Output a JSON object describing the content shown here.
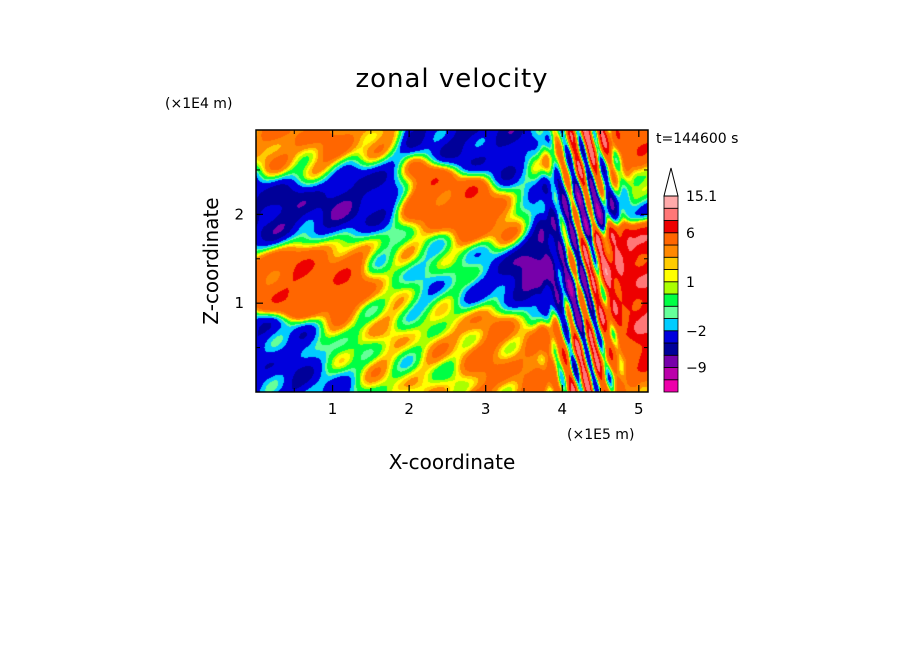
{
  "chart_data": {
    "type": "heatmap",
    "title": "zonal velocity",
    "xlabel": "X-coordinate",
    "ylabel": "Z-coordinate",
    "x_scale_label": "(×1E5 m)",
    "y_scale_label": "(×1E4 m)",
    "time_label": "t=144600 s",
    "xlim": [
      0,
      5.12
    ],
    "ylim": [
      0,
      2.95
    ],
    "x_ticks": [
      1,
      2,
      3,
      4,
      5
    ],
    "y_ticks": [
      1,
      2
    ],
    "grid": false,
    "colorbar": {
      "placement": "right",
      "levels": [
        -15,
        -12,
        -9,
        -6,
        -4,
        -2,
        -1,
        -0.5,
        0.5,
        1,
        1.5,
        2,
        3,
        6,
        8.5,
        12,
        15.1
      ],
      "colors": [
        "#ee00aa",
        "#bb00aa",
        "#7700aa",
        "#000099",
        "#0000dd",
        "#00ccff",
        "#66ff99",
        "#00ff44",
        "#aaff00",
        "#ffff00",
        "#ffcc00",
        "#ff8800",
        "#ff6600",
        "#ee0000",
        "#ff7777",
        "#ffaaaa",
        "#ffffff"
      ],
      "labeled_levels": [
        15.1,
        6,
        1,
        -2,
        -9
      ],
      "labels": [
        "15.1",
        "6",
        "1",
        "−2",
        "−9"
      ],
      "extend": "max"
    },
    "features": [
      {
        "x": 0.2,
        "z": 2.1,
        "value": -5
      },
      {
        "x": 1.1,
        "z": 2.05,
        "value": -5
      },
      {
        "x": 0.9,
        "z": 1.4,
        "value": 5
      },
      {
        "x": 2.6,
        "z": 2.0,
        "value": 5
      },
      {
        "x": 2.5,
        "z": 1.4,
        "value": -1
      },
      {
        "x": 2.0,
        "z": 1.55,
        "value": 0
      },
      {
        "x": 3.8,
        "z": 1.2,
        "value": -7
      },
      {
        "x": 4.8,
        "z": 1.3,
        "value": 8
      },
      {
        "x": 3.5,
        "z": 0.7,
        "value": 3
      },
      {
        "x": 1.6,
        "z": 0.5,
        "value": 1
      },
      {
        "x": 0.4,
        "z": 0.2,
        "value": -3
      },
      {
        "x": 0.5,
        "z": 2.7,
        "value": 3
      },
      {
        "x": 3.3,
        "z": 2.8,
        "value": -4
      },
      {
        "x": 4.2,
        "z": 2.6,
        "value": 5
      },
      {
        "x": 4.1,
        "z": 2.3,
        "value": -4
      }
    ]
  }
}
